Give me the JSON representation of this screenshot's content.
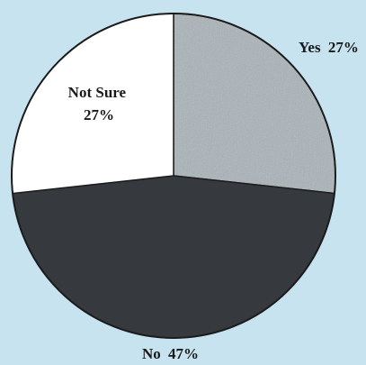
{
  "chart_data": {
    "type": "pie",
    "title": "",
    "slices": [
      {
        "label": "Yes",
        "percent_label": "27%",
        "value": 27,
        "color": "#a9b3b8"
      },
      {
        "label": "No",
        "percent_label": "47%",
        "value": 47,
        "color": "#36393d"
      },
      {
        "label": "Not Sure",
        "percent_label": "27%",
        "value": 27,
        "color": "#ffffff"
      }
    ],
    "start": "12 o'clock",
    "direction": "clockwise",
    "colors": {
      "background": "#c6e3ef",
      "outline": "#1c1c1c"
    }
  }
}
